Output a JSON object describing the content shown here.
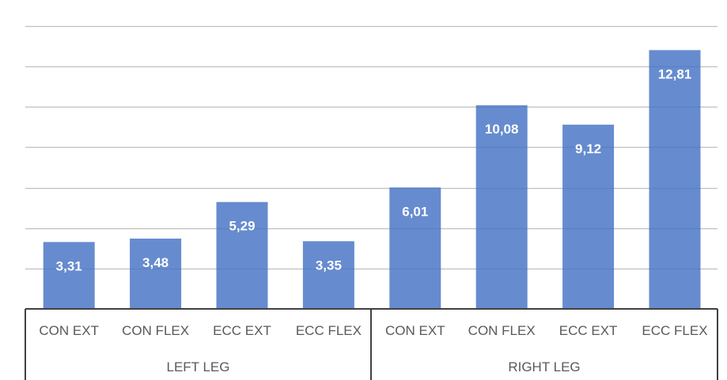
{
  "colors": {
    "bar": "#4472c4",
    "bar_fill_opacity": 0.82,
    "gridline": "#bfbfbf",
    "axis_line": "#404040",
    "label_text": "#595959",
    "value_text": "#ffffff",
    "background": "#ffffff"
  },
  "chart_data": {
    "type": "bar",
    "title": "",
    "xlabel": "",
    "ylabel": "",
    "ylim": [
      0,
      14
    ],
    "y_gridline_step": 2,
    "grid": true,
    "legend": "none",
    "categories": [
      "CON EXT",
      "CON FLEX",
      "ECC EXT",
      "ECC FLEX",
      "CON EXT",
      "CON FLEX",
      "ECC EXT",
      "ECC FLEX"
    ],
    "groups": [
      {
        "label": "LEFT LEG",
        "categories": [
          "CON EXT",
          "CON FLEX",
          "ECC EXT",
          "ECC FLEX"
        ]
      },
      {
        "label": "RIGHT LEG",
        "categories": [
          "CON EXT",
          "CON FLEX",
          "ECC EXT",
          "ECC FLEX"
        ]
      }
    ],
    "values": [
      3.31,
      3.48,
      5.29,
      3.35,
      6.01,
      10.08,
      9.12,
      12.81
    ],
    "value_labels": [
      "3,31",
      "3,48",
      "5,29",
      "3,35",
      "6,01",
      "10,08",
      "9,12",
      "12,81"
    ]
  }
}
